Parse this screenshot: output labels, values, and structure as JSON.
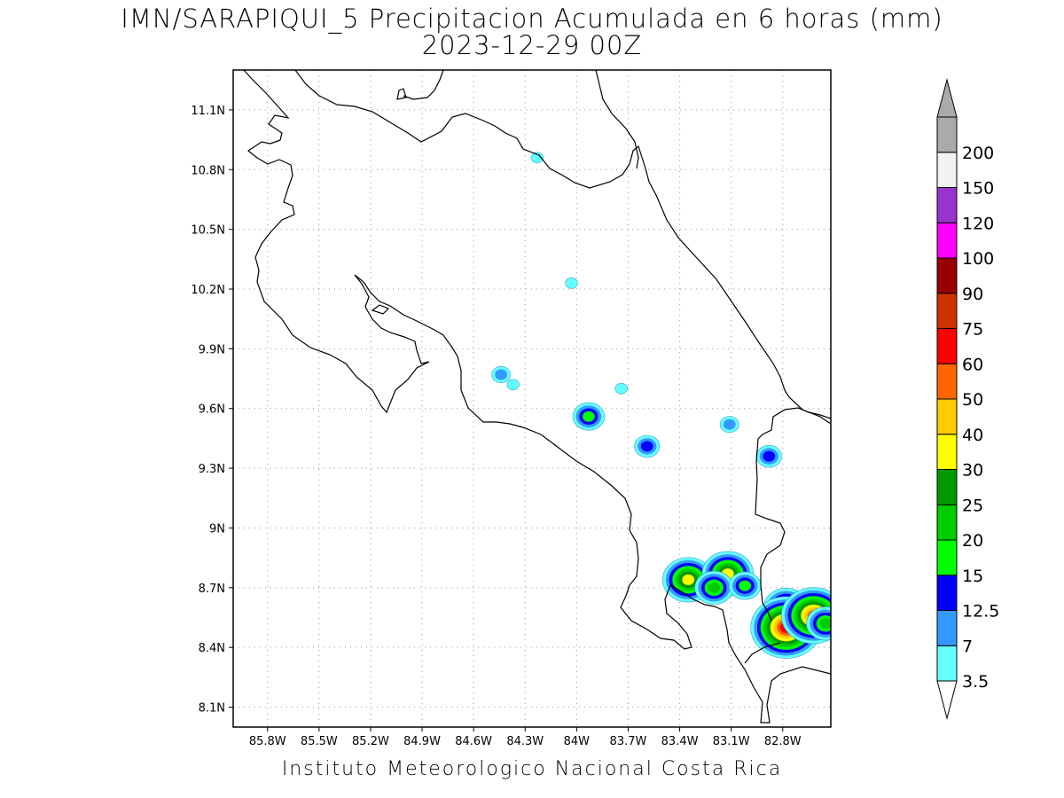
{
  "title": {
    "line1": "IMN/SARAPIQUI_5 Precipitacion Acumulada en 6 horas (mm)",
    "line2": "2023-12-29 00Z"
  },
  "footer": "Instituto Meteorologico Nacional Costa Rica",
  "map": {
    "lat_labels": [
      "11.1N",
      "10.8N",
      "10.5N",
      "10.2N",
      "9.9N",
      "9.6N",
      "9.3N",
      "9N",
      "8.7N",
      "8.4N",
      "8.1N"
    ],
    "lon_labels": [
      "85.8W",
      "85.5W",
      "85.2W",
      "84.9W",
      "84.6W",
      "84.3W",
      "84W",
      "83.7W",
      "83.4W",
      "83.1W",
      "82.8W"
    ],
    "lat_values": [
      11.1,
      10.8,
      10.5,
      10.2,
      9.9,
      9.6,
      9.3,
      9.0,
      8.7,
      8.4,
      8.1
    ],
    "lon_values": [
      -85.8,
      -85.5,
      -85.2,
      -84.9,
      -84.6,
      -84.3,
      -84.0,
      -83.7,
      -83.4,
      -83.1,
      -82.8
    ],
    "lon_range": [
      -86.0,
      -82.52
    ],
    "lat_range": [
      8.0,
      11.3
    ],
    "grid": true
  },
  "colorbar": {
    "labels": [
      "3.5",
      "7",
      "12.5",
      "15",
      "20",
      "25",
      "30",
      "40",
      "50",
      "60",
      "75",
      "90",
      "100",
      "120",
      "150",
      "200"
    ],
    "colors": [
      "#66ffff",
      "#3399ff",
      "#0000ff",
      "#00ff00",
      "#00cc00",
      "#009900",
      "#ffff00",
      "#ffcc00",
      "#ff6600",
      "#ff0000",
      "#cc3300",
      "#990000",
      "#ff00ff",
      "#9933cc",
      "#f2f2f2",
      "#aaaaaa"
    ],
    "under_color": "#ffffff",
    "over_color": "#aaaaaa"
  },
  "precip_cells": [
    {
      "lon": -84.23,
      "lat": 10.86,
      "level": 0
    },
    {
      "lon": -84.03,
      "lat": 10.23,
      "level": 0
    },
    {
      "lon": -84.44,
      "lat": 9.77,
      "level": 1
    },
    {
      "lon": -84.37,
      "lat": 9.72,
      "level": 0
    },
    {
      "lon": -83.93,
      "lat": 9.56,
      "level": 3
    },
    {
      "lon": -83.74,
      "lat": 9.7,
      "level": 0
    },
    {
      "lon": -83.59,
      "lat": 9.41,
      "level": 2
    },
    {
      "lon": -83.11,
      "lat": 9.52,
      "level": 1
    },
    {
      "lon": -82.88,
      "lat": 9.36,
      "level": 2
    },
    {
      "lon": -83.35,
      "lat": 8.74,
      "level": 6
    },
    {
      "lon": -83.12,
      "lat": 8.77,
      "level": 6
    },
    {
      "lon": -83.2,
      "lat": 8.7,
      "level": 4
    },
    {
      "lon": -83.02,
      "lat": 8.71,
      "level": 3
    },
    {
      "lon": -82.78,
      "lat": 8.6,
      "level": 5
    },
    {
      "lon": -82.78,
      "lat": 8.5,
      "level": 9
    },
    {
      "lon": -82.62,
      "lat": 8.56,
      "level": 8
    },
    {
      "lon": -82.55,
      "lat": 8.52,
      "level": 4
    }
  ]
}
